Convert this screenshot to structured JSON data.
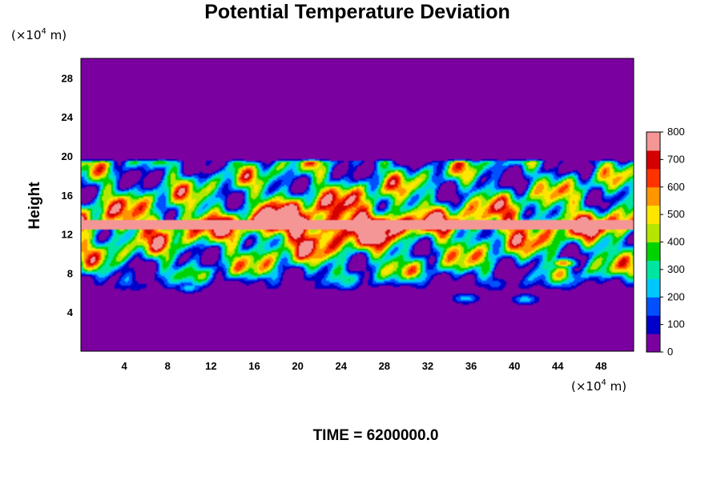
{
  "chart_data": {
    "type": "heatmap",
    "title": "Potential Temperature Deviation",
    "ylabel": "Height",
    "x_unit": {
      "prefix": "(×10",
      "exp": "4",
      "suffix": " m)"
    },
    "y_unit": {
      "prefix": "(×10",
      "exp": "4",
      "suffix": " m)"
    },
    "xlim": [
      0,
      51
    ],
    "ylim": [
      0,
      30
    ],
    "x_ticks": [
      "4",
      "8",
      "12",
      "16",
      "20",
      "24",
      "28",
      "32",
      "36",
      "40",
      "44",
      "48"
    ],
    "y_ticks": [
      "4",
      "8",
      "12",
      "16",
      "20",
      "24",
      "28"
    ],
    "colorbar": {
      "range": [
        0,
        800
      ],
      "ticks": [
        "0",
        "100",
        "200",
        "300",
        "400",
        "500",
        "600",
        "700",
        "800"
      ],
      "colors": [
        "#7a00a0",
        "#0000c8",
        "#0050ff",
        "#00c8ff",
        "#00e6a0",
        "#00d200",
        "#b4e600",
        "#ffe600",
        "#ff9600",
        "#ff3200",
        "#d20000",
        "#f59696"
      ]
    },
    "field": {
      "background_value": 0,
      "disturbed_layer_height": [
        6,
        19.6
      ],
      "core_band_height": [
        12.5,
        13.5
      ],
      "core_value": 800,
      "peak_core_region_x": [
        18,
        28
      ],
      "lower_blobs": [
        {
          "x": 41,
          "y": 5.3,
          "value": 250
        },
        {
          "x": 35.5,
          "y": 5.4,
          "value": 250
        },
        {
          "x": 10,
          "y": 6.5,
          "value": 250
        },
        {
          "x": 44.5,
          "y": 9,
          "value": 600
        }
      ]
    },
    "time_label": "TIME = 6200000.0"
  }
}
